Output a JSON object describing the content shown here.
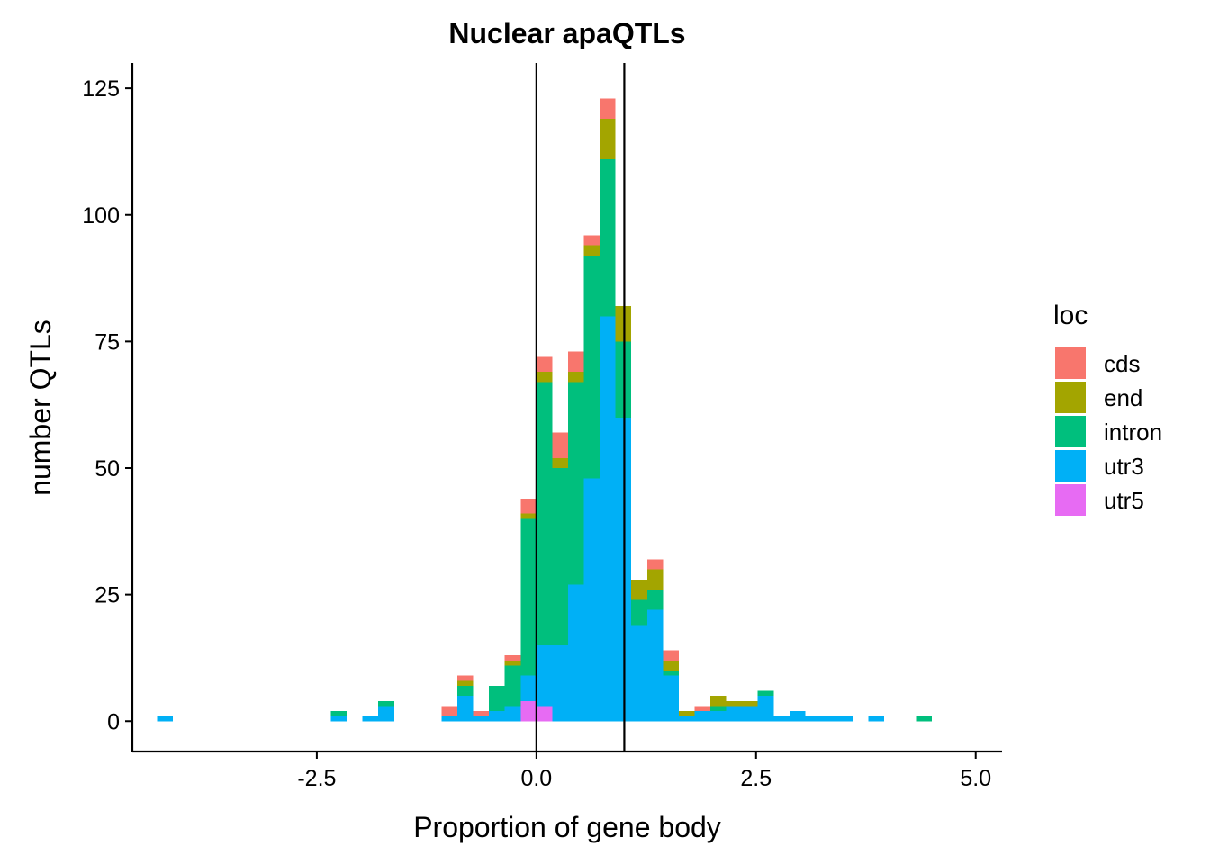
{
  "chart_data": {
    "type": "bar",
    "subtype": "stacked-histogram",
    "title": "Nuclear apaQTLs",
    "xlabel": "Proportion of gene body",
    "ylabel": "number QTLs",
    "xlim": [
      -4.6,
      5.3
    ],
    "ylim": [
      -6,
      130
    ],
    "xticks": [
      -2.5,
      0.0,
      2.5,
      5.0
    ],
    "xtick_labels": [
      "-2.5",
      "0.0",
      "2.5",
      "5.0"
    ],
    "yticks": [
      0,
      25,
      50,
      75,
      100,
      125
    ],
    "ytick_labels": [
      "0",
      "25",
      "50",
      "75",
      "100",
      "125"
    ],
    "bin_width": 0.18,
    "bin_start": -4.32,
    "vlines": [
      0.0,
      1.0
    ],
    "legend_title": "loc",
    "legend_position": "right",
    "series": [
      {
        "name": "utr5",
        "color": "#E76BF3"
      },
      {
        "name": "utr3",
        "color": "#00B0F6"
      },
      {
        "name": "intron",
        "color": "#00BF7D"
      },
      {
        "name": "end",
        "color": "#A3A500"
      },
      {
        "name": "cds",
        "color": "#F8766D"
      }
    ],
    "legend_order": [
      "cds",
      "end",
      "intron",
      "utr3",
      "utr5"
    ],
    "bins": [
      {
        "i": 0,
        "utr5": 0,
        "utr3": 1,
        "intron": 0,
        "end": 0,
        "cds": 0
      },
      {
        "i": 11,
        "utr5": 0,
        "utr3": 1,
        "intron": 1,
        "end": 0,
        "cds": 0
      },
      {
        "i": 13,
        "utr5": 0,
        "utr3": 1,
        "intron": 0,
        "end": 0,
        "cds": 0
      },
      {
        "i": 14,
        "utr5": 0,
        "utr3": 3,
        "intron": 1,
        "end": 0,
        "cds": 0
      },
      {
        "i": 18,
        "utr5": 0,
        "utr3": 1,
        "intron": 0,
        "end": 0,
        "cds": 2
      },
      {
        "i": 19,
        "utr5": 0,
        "utr3": 5,
        "intron": 2,
        "end": 1,
        "cds": 1
      },
      {
        "i": 20,
        "utr5": 0,
        "utr3": 1,
        "intron": 0,
        "end": 0,
        "cds": 1
      },
      {
        "i": 21,
        "utr5": 0,
        "utr3": 2,
        "intron": 5,
        "end": 0,
        "cds": 0
      },
      {
        "i": 22,
        "utr5": 0,
        "utr3": 3,
        "intron": 8,
        "end": 1,
        "cds": 1
      },
      {
        "i": 23,
        "utr5": 4,
        "utr3": 5,
        "intron": 31,
        "end": 1,
        "cds": 3
      },
      {
        "i": 24,
        "utr5": 3,
        "utr3": 12,
        "intron": 52,
        "end": 2,
        "cds": 3
      },
      {
        "i": 25,
        "utr5": 0,
        "utr3": 15,
        "intron": 35,
        "end": 2,
        "cds": 5
      },
      {
        "i": 26,
        "utr5": 0,
        "utr3": 27,
        "intron": 40,
        "end": 2,
        "cds": 4
      },
      {
        "i": 27,
        "utr5": 0,
        "utr3": 48,
        "intron": 44,
        "end": 2,
        "cds": 2
      },
      {
        "i": 28,
        "utr5": 0,
        "utr3": 80,
        "intron": 31,
        "end": 8,
        "cds": 4
      },
      {
        "i": 29,
        "utr5": 0,
        "utr3": 60,
        "intron": 15,
        "end": 7,
        "cds": 0
      },
      {
        "i": 30,
        "utr5": 0,
        "utr3": 19,
        "intron": 5,
        "end": 4,
        "cds": 0
      },
      {
        "i": 31,
        "utr5": 0,
        "utr3": 22,
        "intron": 4,
        "end": 4,
        "cds": 2
      },
      {
        "i": 32,
        "utr5": 0,
        "utr3": 9,
        "intron": 1,
        "end": 2,
        "cds": 2
      },
      {
        "i": 33,
        "utr5": 0,
        "utr3": 1,
        "intron": 0,
        "end": 1,
        "cds": 0
      },
      {
        "i": 34,
        "utr5": 0,
        "utr3": 2,
        "intron": 0,
        "end": 0,
        "cds": 1
      },
      {
        "i": 35,
        "utr5": 0,
        "utr3": 2,
        "intron": 1,
        "end": 2,
        "cds": 0
      },
      {
        "i": 36,
        "utr5": 0,
        "utr3": 3,
        "intron": 0,
        "end": 1,
        "cds": 0
      },
      {
        "i": 37,
        "utr5": 0,
        "utr3": 3,
        "intron": 0,
        "end": 1,
        "cds": 0
      },
      {
        "i": 38,
        "utr5": 0,
        "utr3": 5,
        "intron": 1,
        "end": 0,
        "cds": 0
      },
      {
        "i": 39,
        "utr5": 0,
        "utr3": 1,
        "intron": 0,
        "end": 0,
        "cds": 0
      },
      {
        "i": 40,
        "utr5": 0,
        "utr3": 2,
        "intron": 0,
        "end": 0,
        "cds": 0
      },
      {
        "i": 41,
        "utr5": 0,
        "utr3": 1,
        "intron": 0,
        "end": 0,
        "cds": 0
      },
      {
        "i": 42,
        "utr5": 0,
        "utr3": 1,
        "intron": 0,
        "end": 0,
        "cds": 0
      },
      {
        "i": 43,
        "utr5": 0,
        "utr3": 1,
        "intron": 0,
        "end": 0,
        "cds": 0
      },
      {
        "i": 45,
        "utr5": 0,
        "utr3": 1,
        "intron": 0,
        "end": 0,
        "cds": 0
      },
      {
        "i": 48,
        "utr5": 0,
        "utr3": 0,
        "intron": 1,
        "end": 0,
        "cds": 0
      }
    ]
  }
}
